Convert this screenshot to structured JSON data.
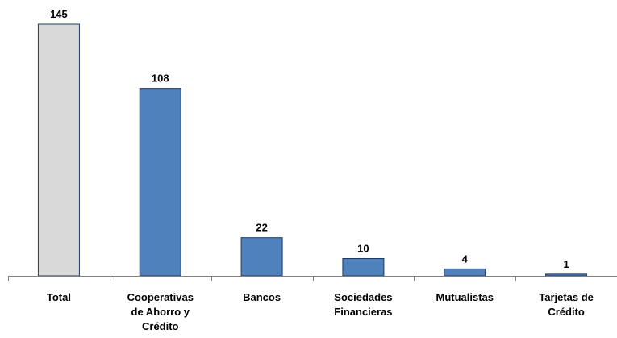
{
  "chart_data": {
    "type": "bar",
    "categories": [
      [
        "Total"
      ],
      [
        "Cooperativas",
        "de Ahorro y",
        "Crédito"
      ],
      [
        "Bancos"
      ],
      [
        "Sociedades",
        "Financieras"
      ],
      [
        "Mutualistas"
      ],
      [
        "Tarjetas de",
        "Crédito"
      ]
    ],
    "values": [
      145,
      108,
      22,
      10,
      4,
      1
    ],
    "value_labels": [
      "145",
      "108",
      "22",
      "10",
      "4",
      "1"
    ],
    "bar_colors": [
      "#d9d9d9",
      "#4f81bd",
      "#4f81bd",
      "#4f81bd",
      "#4f81bd",
      "#4f81bd"
    ],
    "bar_stroke": "#1f3864",
    "axis_color": "#808080",
    "ylim": [
      0,
      145
    ],
    "grid": false,
    "legend": "none"
  }
}
